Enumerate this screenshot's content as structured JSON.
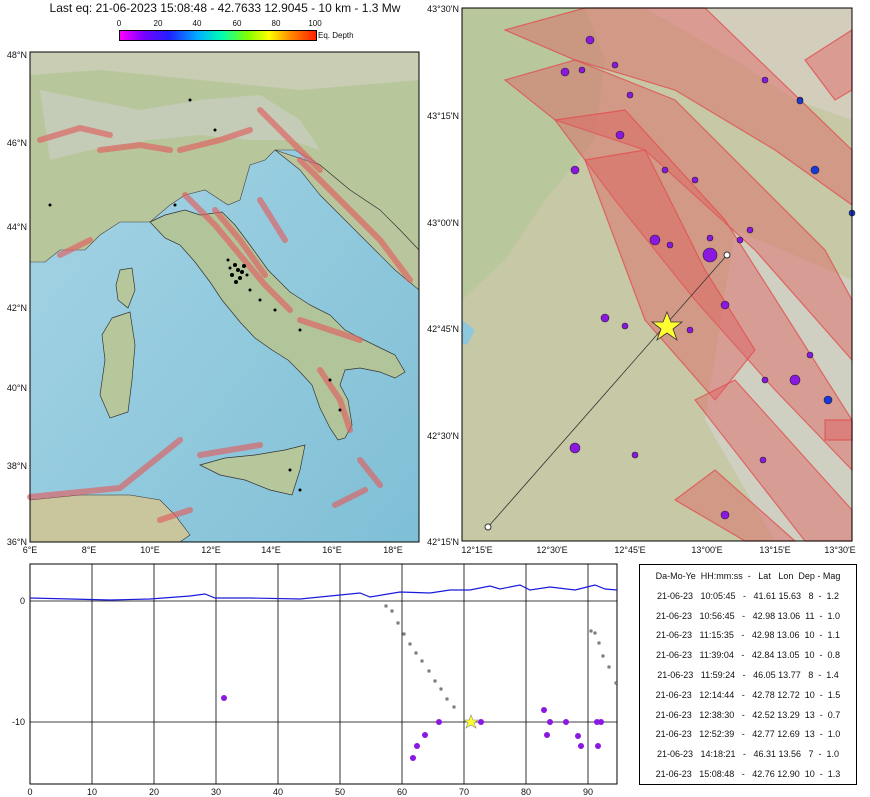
{
  "header": {
    "title": "Last eq: 21-06-2023 15:08:48 - 42.7633 12.9045 - 10 km - 1.3 Mw",
    "colorbar_ticks": [
      "0",
      "20",
      "40",
      "60",
      "80",
      "100"
    ],
    "colorbar_label": "Eq. Depth"
  },
  "italy_map": {
    "lat_labels": [
      "48°N",
      "46°N",
      "44°N",
      "42°N",
      "40°N",
      "38°N",
      "36°N"
    ],
    "lon_labels": [
      "6°E",
      "8°E",
      "10°E",
      "12°E",
      "14°E",
      "16°E",
      "18°E"
    ]
  },
  "zoom_map": {
    "lat_labels": [
      "43°30'N",
      "43°15'N",
      "43°00'N",
      "42°45'N",
      "42°30'N",
      "42°15'N"
    ],
    "lon_labels": [
      "12°15'E",
      "12°30'E",
      "12°45'E",
      "13°00'E",
      "13°15'E",
      "13°30'E"
    ]
  },
  "depth_profile": {
    "y_labels": [
      "0",
      "-10"
    ],
    "x_labels": [
      "0",
      "10",
      "20",
      "30",
      "40",
      "50",
      "60",
      "70",
      "80",
      "90"
    ]
  },
  "event_table": {
    "header": "Da-Mo-Ye  HH:mm:ss  -   Lat   Lon  Dep - Mag",
    "rows": [
      "21-06-23   10:05:45   -   41.61 15.63   8  -  1.2",
      "21-06-23   10:56:45   -   42.98 13.06  11  -  1.0",
      "21-06-23   11:15:35   -   42.98 13.06  10  -  1.1",
      "21-06-23   11:39:04   -   42.84 13.05  10  -  0.8",
      "21-06-23   11:59:24   -   46.05 13.77   8  -  1.4",
      "21-06-23   12:14:44   -   42.78 12.72  10  -  1.5",
      "21-06-23   12:38:30   -   42.52 13.29  13  -  0.7",
      "21-06-23   12:52:39   -   42.77 12.69  13  -  1.0",
      "21-06-23   14:18:21   -   46.31 13.56   7  -  1.0",
      "21-06-23   15:08:48   -   42.76 12.90  10  -  1.3"
    ]
  },
  "colors": {
    "sea": "#8ec8dc",
    "land": "#b5c8a0",
    "fault_zone": "#e06060",
    "depth_line": "#1a1adc",
    "event_purple": "#8a18e0",
    "latest_star": "#ffff30"
  }
}
